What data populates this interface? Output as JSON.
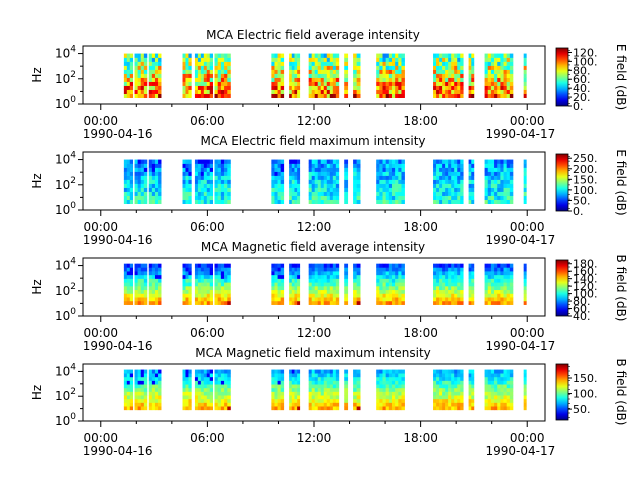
{
  "chart_data": [
    {
      "type": "heatmap",
      "title": "MCA  Electric field average intensity",
      "ylabel": "Hz",
      "y_scale": "log",
      "y_ticks": [
        {
          "base": "10",
          "exp": "0"
        },
        {
          "base": "10",
          "exp": "2"
        },
        {
          "base": "10",
          "exp": "4"
        }
      ],
      "colorbar": {
        "label": "E field (dB)",
        "ticks": [
          "0.",
          "20.",
          "40.",
          "60.",
          "80.",
          "100.",
          "120."
        ],
        "range": [
          0,
          130
        ]
      }
    },
    {
      "type": "heatmap",
      "title": "MCA  Electric field maximum intensity",
      "ylabel": "Hz",
      "y_scale": "log",
      "y_ticks": [
        {
          "base": "10",
          "exp": "0"
        },
        {
          "base": "10",
          "exp": "2"
        },
        {
          "base": "10",
          "exp": "4"
        }
      ],
      "colorbar": {
        "label": "E field (dB)",
        "ticks": [
          "0.",
          "50.",
          "100.",
          "150.",
          "200.",
          "250."
        ],
        "range": [
          0,
          270
        ]
      }
    },
    {
      "type": "heatmap",
      "title": "MCA  Magnetic field average intensity",
      "ylabel": "Hz",
      "y_scale": "log",
      "y_ticks": [
        {
          "base": "10",
          "exp": "0"
        },
        {
          "base": "10",
          "exp": "2"
        },
        {
          "base": "10",
          "exp": "4"
        }
      ],
      "colorbar": {
        "label": "B field (dB)",
        "ticks": [
          "40.",
          "60.",
          "80.",
          "100.",
          "120.",
          "140.",
          "160.",
          "180."
        ],
        "range": [
          40,
          190
        ]
      }
    },
    {
      "type": "heatmap",
      "title": "MCA  Magnetic field maximum intensity",
      "ylabel": "Hz",
      "y_scale": "log",
      "y_ticks": [
        {
          "base": "10",
          "exp": "0"
        },
        {
          "base": "10",
          "exp": "2"
        },
        {
          "base": "10",
          "exp": "4"
        }
      ],
      "colorbar": {
        "label": "B field (dB)",
        "ticks": [
          "50.",
          "100.",
          "150."
        ],
        "range": [
          15,
          195
        ]
      }
    }
  ],
  "x_axis": {
    "tick_labels": [
      "00:00",
      "06:00",
      "12:00",
      "18:00",
      "00:00"
    ],
    "date_labels": [
      "1990-04-16",
      "1990-04-17"
    ]
  },
  "data_intervals_hours": [
    [
      1.3,
      1.8
    ],
    [
      1.9,
      2.6
    ],
    [
      2.7,
      3.4
    ],
    [
      4.6,
      5.1
    ],
    [
      5.3,
      6.3
    ],
    [
      6.4,
      7.3
    ],
    [
      9.6,
      10.3
    ],
    [
      10.6,
      11.2
    ],
    [
      11.7,
      13.4
    ],
    [
      13.7,
      13.9
    ],
    [
      14.2,
      14.6
    ],
    [
      15.5,
      17.1
    ],
    [
      18.7,
      20.4
    ],
    [
      20.7,
      21.0
    ],
    [
      21.6,
      23.2
    ],
    [
      23.8,
      23.95
    ]
  ]
}
